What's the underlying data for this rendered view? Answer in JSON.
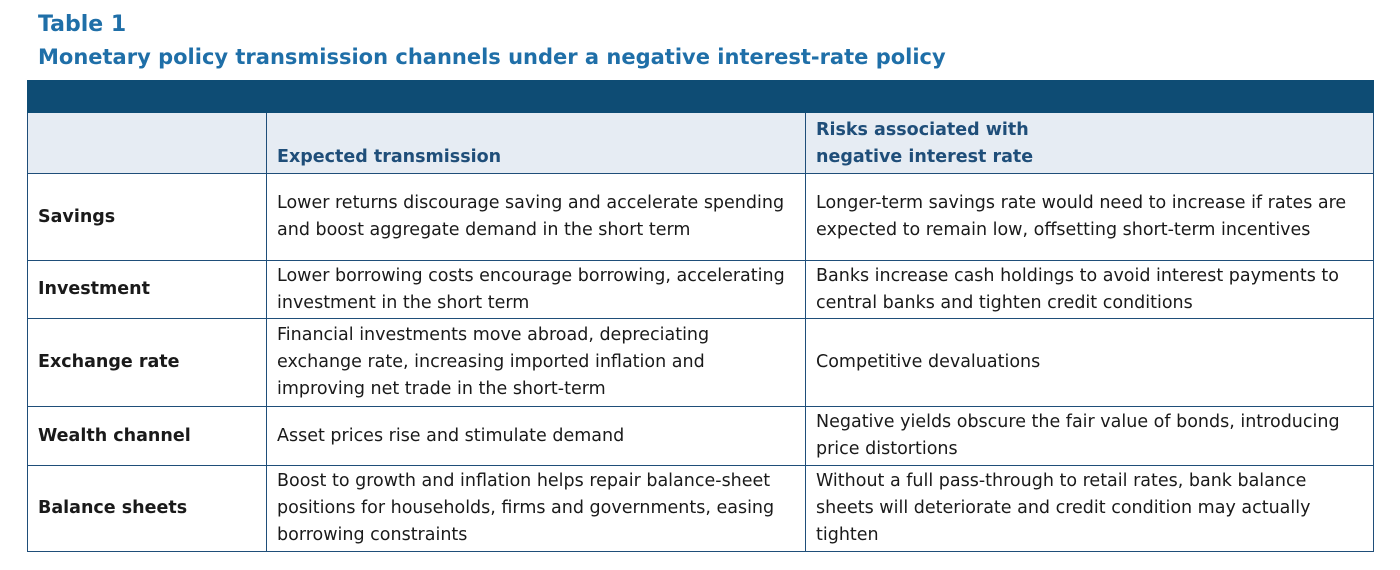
{
  "table_label": "Table 1",
  "table_title": "Monetary policy transmission channels under a negative interest-rate policy",
  "columns": {
    "channel": "",
    "expected": "Expected transmission",
    "risks_line1": "Risks associated with",
    "risks_line2": "negative interest rate"
  },
  "rows": [
    {
      "channel": "Savings",
      "expected": "Lower returns discourage saving and accelerate spending and boost aggregate demand in the short term",
      "risks": "Longer-term savings rate would need to increase if rates are expected to remain low, offsetting short-term incentives"
    },
    {
      "channel": "Investment",
      "expected": "Lower borrowing costs encourage borrowing, accelerating investment in the short term",
      "risks": "Banks increase cash holdings to avoid interest payments to central banks and tighten credit conditions"
    },
    {
      "channel": "Exchange rate",
      "expected": "Financial investments move abroad, depreciating exchange rate, increasing imported inflation and improving net trade in the short-term",
      "risks": "Competitive devaluations"
    },
    {
      "channel": "Wealth channel",
      "expected": "Asset prices rise and stimulate demand",
      "risks": "Negative yields obscure the fair value of bonds, introducing price distortions"
    },
    {
      "channel": "Balance sheets",
      "expected": "Boost to growth and inflation helps repair balance-sheet positions for households, firms and governments, easing borrowing constraints",
      "risks": "Without a full pass-through to retail rates, bank balance sheets will deteriorate and credit condition may actually tighten"
    }
  ],
  "colors": {
    "title": "#1f6fa8",
    "header_bar": "#0e4c74",
    "header_bg": "#e6ecf3",
    "header_text": "#1f4e79",
    "border": "#1f4e79"
  }
}
